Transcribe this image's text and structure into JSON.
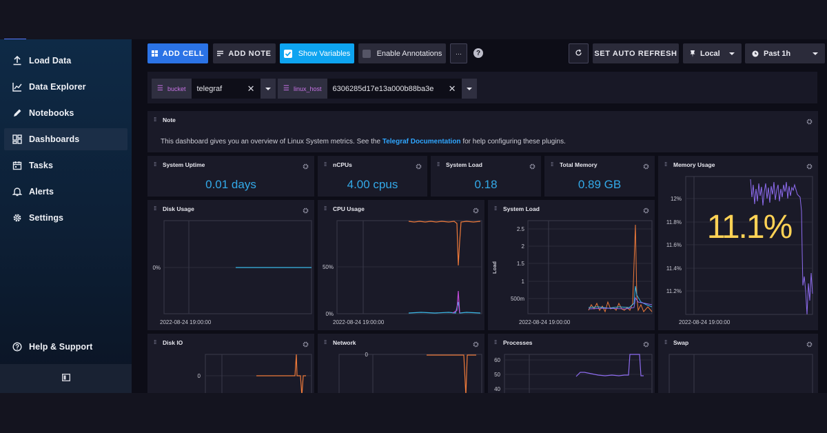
{
  "sidebar": {
    "items": [
      {
        "label": "Load Data",
        "icon": "upload-icon"
      },
      {
        "label": "Data Explorer",
        "icon": "graph-line-icon"
      },
      {
        "label": "Notebooks",
        "icon": "pencil-icon"
      },
      {
        "label": "Dashboards",
        "icon": "dashboard-grid-icon",
        "active": true
      },
      {
        "label": "Tasks",
        "icon": "calendar-icon"
      },
      {
        "label": "Alerts",
        "icon": "bell-icon"
      },
      {
        "label": "Settings",
        "icon": "gear-icon"
      }
    ],
    "help_label": "Help & Support"
  },
  "toolbar": {
    "add_cell": "ADD CELL",
    "add_note": "ADD NOTE",
    "show_variables": "Show Variables",
    "enable_annotations": "Enable Annotations",
    "more": "···",
    "help": "?",
    "auto_refresh": "SET AUTO REFRESH",
    "timezone": "Local",
    "time_range": "Past 1h"
  },
  "variables": [
    {
      "key": "bucket",
      "value": "telegraf"
    },
    {
      "key": "linux_host",
      "value": "6306285d17e13a000b88ba3e"
    }
  ],
  "note_cell": {
    "title": "Note",
    "text_before": "This dashboard gives you an overview of Linux System metrics. See the ",
    "link": "Telegraf Documentation",
    "text_after": " for help configuring these plugins."
  },
  "stats": {
    "system_uptime": {
      "title": "System Uptime",
      "value": "0.01 days"
    },
    "ncpus": {
      "title": "nCPUs",
      "value": "4.00 cpus"
    },
    "system_load": {
      "title": "System Load",
      "value": "0.18"
    },
    "total_memory": {
      "title": "Total Memory",
      "value": "0.89 GB"
    }
  },
  "memory_usage": {
    "title": "Memory Usage",
    "value": "11.1%",
    "ticks": [
      "12%",
      "11.8%",
      "11.6%",
      "11.4%",
      "11.2%"
    ],
    "time_label": "2022-08-24 19:00:00"
  },
  "graphs": {
    "disk_usage": {
      "title": "Disk Usage",
      "ticks": [
        "0%"
      ],
      "time_label": "2022-08-24 19:00:00"
    },
    "cpu_usage": {
      "title": "CPU Usage",
      "ticks": [
        "50%",
        "0%"
      ],
      "time_label": "2022-08-24 19:00:00"
    },
    "system_load_graph": {
      "title": "System Load",
      "ylabel": "Load",
      "ticks": [
        "2.5",
        "2",
        "1.5",
        "1",
        "500m"
      ],
      "time_label": "2022-08-24 19:00:00"
    },
    "disk_io": {
      "title": "Disk IO",
      "ticks": [
        "0"
      ]
    },
    "network": {
      "title": "Network",
      "ticks": [
        "0"
      ]
    },
    "processes": {
      "title": "Processes",
      "ticks": [
        "60",
        "50",
        "40"
      ]
    },
    "swap": {
      "title": "Swap",
      "ticks": []
    }
  },
  "colors": {
    "accent_blue": "#2b73e6",
    "cyan": "#0ea4f0",
    "stat_blue": "#33a9e8",
    "memory_yellow": "#ffd255",
    "line_orange": "#ef7a3a",
    "line_purple": "#8e6cf0",
    "line_cyan": "#3ab9e8"
  }
}
